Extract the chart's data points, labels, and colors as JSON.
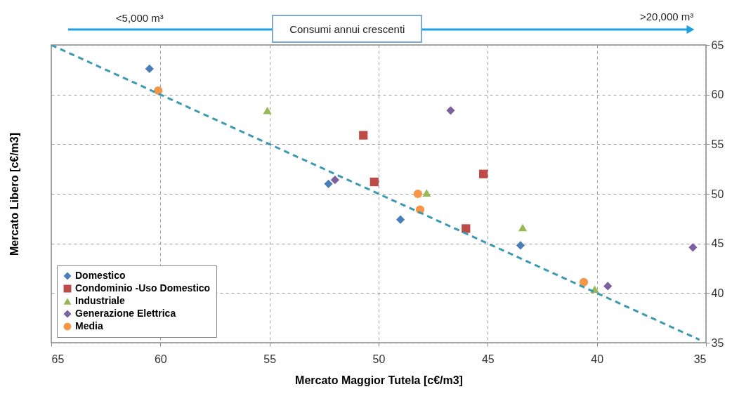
{
  "chart_data": {
    "type": "scatter",
    "xlabel": "Mercato Maggior Tutela [c€/m3]",
    "ylabel": "Mercato Libero [c€/m3]",
    "xlim": [
      65,
      35
    ],
    "xticks": [
      65,
      60,
      55,
      50,
      45,
      40,
      35
    ],
    "ylim": [
      35,
      65
    ],
    "yticks": [
      35,
      40,
      45,
      50,
      55,
      60,
      65
    ],
    "grid": true,
    "legend": "bottom left",
    "annotations": [
      "<5,000 m³",
      "Consumi annui crescenti",
      ">20,000 m³"
    ],
    "series": [
      {
        "name": "Domestico",
        "color": "#4a7ebb",
        "marker": "diamond",
        "x": [
          60.5,
          52.3,
          49.0,
          43.5
        ],
        "values": [
          62.6,
          51.0,
          47.4,
          44.8
        ]
      },
      {
        "name": "Condominio -Uso Domestico",
        "color": "#be4b48",
        "marker": "square",
        "x": [
          50.7,
          50.2,
          46.0,
          45.2
        ],
        "values": [
          55.9,
          51.2,
          46.5,
          52.0
        ]
      },
      {
        "name": "Industriale",
        "color": "#98b954",
        "marker": "triangle",
        "x": [
          55.1,
          47.8,
          43.4,
          40.1
        ],
        "values": [
          58.4,
          50.1,
          46.6,
          40.4
        ]
      },
      {
        "name": "Generazione Elettrica",
        "color": "#7d60a0",
        "marker": "diamond",
        "x": [
          52.0,
          46.7,
          39.5,
          35.6
        ],
        "values": [
          51.4,
          58.4,
          40.7,
          44.6
        ]
      },
      {
        "name": "Media",
        "color": "#f79646",
        "marker": "circle",
        "x": [
          60.1,
          48.2,
          48.1,
          40.6
        ],
        "values": [
          60.4,
          50.0,
          48.4,
          41.1
        ]
      },
      {
        "type": "line",
        "color": "#3a9ab3",
        "marker": "none",
        "line_style": "dashed",
        "x": [
          65,
          35.3
        ],
        "values": [
          65,
          35.3
        ]
      }
    ]
  }
}
